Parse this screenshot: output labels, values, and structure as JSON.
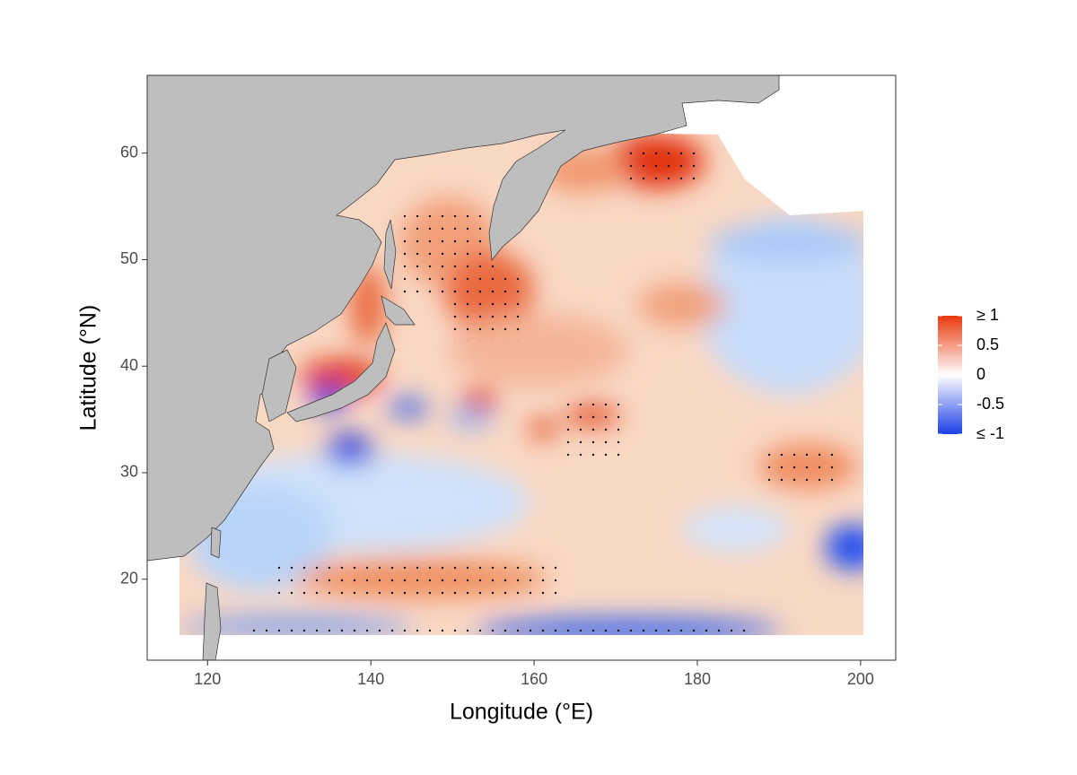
{
  "chart_data": {
    "type": "map",
    "xlabel": "Longitude (°E)",
    "ylabel": "Latitude (°N)",
    "xlim": [
      112.6,
      204.3
    ],
    "ylim": [
      12.4,
      67.3
    ],
    "xticks": [
      120,
      140,
      160,
      180,
      200
    ],
    "yticks": [
      20,
      30,
      40,
      50,
      60
    ],
    "colorbar": {
      "lim": [
        -1,
        1
      ],
      "ticks": [
        {
          "value": 1,
          "label": "≥ 1"
        },
        0.5,
        0,
        -0.5,
        {
          "value": -1,
          "label": "≤ -1"
        }
      ],
      "colors": [
        "#1c3fe6",
        "#ffffff",
        "#e8380c"
      ]
    }
  }
}
